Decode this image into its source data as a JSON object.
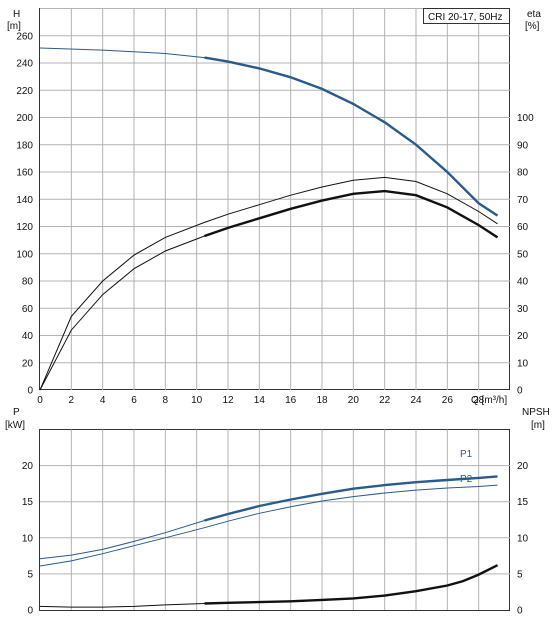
{
  "chart_data": [
    {
      "type": "line",
      "title": "CRI 20-17, 50Hz",
      "xlabel": "Q [m³/h]",
      "ylabel_left": [
        "H",
        "[m]"
      ],
      "ylabel_right": [
        "eta",
        "[%]"
      ],
      "xlim": [
        0,
        30
      ],
      "ylim_left": [
        0,
        280
      ],
      "ylim_right": [
        0,
        140
      ],
      "x_ticks": [
        "0",
        "2",
        "4",
        "6",
        "8",
        "10",
        "12",
        "14",
        "16",
        "18",
        "20",
        "22",
        "24",
        "26",
        "28"
      ],
      "left_ticks": [
        "0",
        "20",
        "40",
        "60",
        "80",
        "100",
        "120",
        "140",
        "160",
        "180",
        "200",
        "220",
        "240",
        "260"
      ],
      "right_ticks": [
        "0",
        "10",
        "20",
        "30",
        "40",
        "50",
        "60",
        "70",
        "80",
        "90",
        "100"
      ],
      "grid": true,
      "series": [
        {
          "axis": "left",
          "color": "#2b5a8c",
          "x": [
            0,
            4,
            8,
            10.5,
            12,
            14,
            16,
            18,
            20,
            22,
            24,
            26,
            28,
            29.2
          ],
          "y": [
            251,
            249.5,
            247,
            244,
            241,
            236,
            229.5,
            221,
            210,
            196.5,
            180,
            160,
            137,
            128
          ]
        },
        {
          "axis": "right",
          "color": "#111111",
          "x": [
            0,
            2,
            4,
            6,
            8,
            10.5,
            12,
            14,
            16,
            18,
            20,
            22,
            24,
            26,
            28,
            29.2
          ],
          "y": [
            0,
            22,
            35,
            44.5,
            51,
            56.5,
            59.5,
            63,
            66.5,
            69.5,
            72,
            73,
            71.5,
            67,
            60.5,
            56
          ]
        }
      ]
    },
    {
      "type": "line",
      "xlabel": "",
      "ylabel_left": [
        "P",
        "[kW]"
      ],
      "ylabel_right": [
        "NPSH",
        "[m]"
      ],
      "xlim": [
        0,
        30
      ],
      "ylim_left": [
        0,
        25
      ],
      "ylim_right": [
        0,
        25
      ],
      "left_ticks": [
        "0",
        "5",
        "10",
        "15",
        "20"
      ],
      "right_ticks": [
        "0",
        "5",
        "10",
        "15",
        "20"
      ],
      "grid": true,
      "series": [
        {
          "name": "P1",
          "axis": "left",
          "color": "#2b5a8c",
          "x": [
            0,
            2,
            4,
            6,
            8,
            10.5,
            12,
            14,
            16,
            18,
            20,
            22,
            24,
            26,
            28,
            29.2
          ],
          "y": [
            7.1,
            7.6,
            8.4,
            9.5,
            10.7,
            12.4,
            13.3,
            14.4,
            15.3,
            16.1,
            16.8,
            17.3,
            17.7,
            18.0,
            18.3,
            18.5
          ]
        },
        {
          "name": "P2",
          "axis": "left",
          "color": "#2b5a8c",
          "x": [
            0,
            2,
            4,
            6,
            8,
            10.5,
            12,
            14,
            16,
            18,
            20,
            22,
            24,
            26,
            28,
            29.2
          ],
          "y": [
            6.1,
            6.8,
            7.8,
            8.9,
            10.0,
            11.4,
            12.3,
            13.4,
            14.3,
            15.1,
            15.7,
            16.2,
            16.6,
            16.9,
            17.1,
            17.3
          ]
        },
        {
          "name": "NPSH",
          "axis": "right",
          "color": "#111111",
          "x": [
            0,
            2,
            4,
            6,
            8,
            10.5,
            12,
            14,
            16,
            18,
            20,
            22,
            24,
            26,
            27,
            28,
            29.2
          ],
          "y": [
            0.5,
            0.4,
            0.4,
            0.5,
            0.7,
            0.9,
            1.0,
            1.1,
            1.2,
            1.4,
            1.6,
            2.0,
            2.6,
            3.4,
            4.0,
            4.9,
            6.2
          ]
        }
      ]
    }
  ]
}
